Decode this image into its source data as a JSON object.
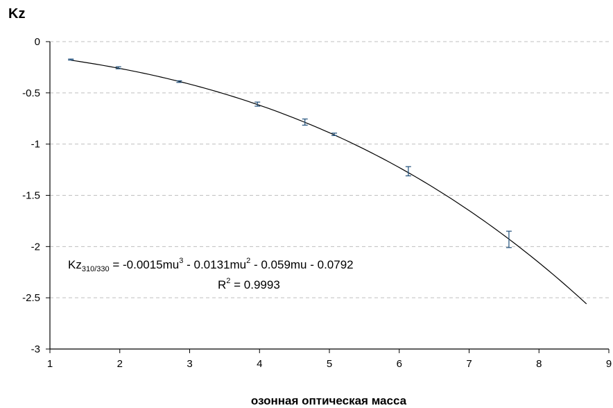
{
  "chart_data": {
    "type": "scatter",
    "ylabel": "Kz",
    "xlabel": "озонная оптическая масса",
    "xlim": [
      1,
      9
    ],
    "ylim": [
      -3,
      0
    ],
    "x_ticks": [
      1,
      2,
      3,
      4,
      5,
      6,
      7,
      8,
      9
    ],
    "x_tick_labels": [
      "1",
      "2",
      "3",
      "4",
      "5",
      "6",
      "7",
      "8",
      "9"
    ],
    "y_ticks": [
      0,
      -0.5,
      -1,
      -1.5,
      -2,
      -2.5,
      -3
    ],
    "y_tick_labels": [
      "0",
      "-0.5",
      "-1",
      "-1.5",
      "-2",
      "-2.5",
      "-3"
    ],
    "grid": {
      "horizontal": true,
      "style": "dashed",
      "color": "#bfbfbf"
    },
    "series": [
      {
        "marker": "error-bar",
        "x": [
          1.3,
          1.98,
          2.85,
          3.97,
          4.65,
          5.07,
          6.13,
          7.57
        ],
        "y": [
          -0.175,
          -0.255,
          -0.39,
          -0.61,
          -0.785,
          -0.905,
          -1.265,
          -1.93
        ],
        "error": [
          0.005,
          0.01,
          0.008,
          0.02,
          0.03,
          0.012,
          0.045,
          0.08
        ],
        "color": "#1f4e79"
      }
    ],
    "trendline": {
      "type": "polynomial",
      "coefficients": [
        -0.0015,
        -0.0131,
        -0.059,
        -0.0792
      ],
      "x_range": [
        1.3,
        8.68
      ],
      "color": "#000000"
    },
    "annotation": {
      "equation_prefix": "Kz",
      "equation_subscript": "310/330",
      "equation_body": " = -0.0015mu",
      "equation_sup1": "3",
      "equation_mid": " - 0.0131mu",
      "equation_sup2": "2",
      "equation_tail": " - 0.059mu - 0.0792",
      "r2_prefix": "R",
      "r2_sup": "2",
      "r2_value": " = 0.9993"
    }
  }
}
